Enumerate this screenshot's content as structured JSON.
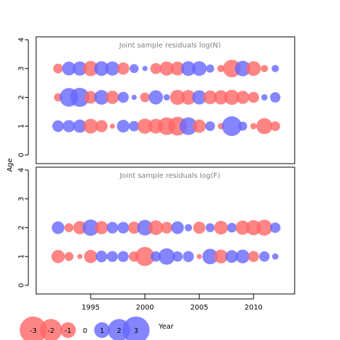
{
  "chart_data": {
    "type": "scatter",
    "ylabel": "Age",
    "xlabel": "Year",
    "xlim": [
      1990,
      2013.5
    ],
    "x_ticks": [
      1995,
      2000,
      2005,
      2010
    ],
    "y_ticks": [
      0,
      1,
      2,
      3,
      4
    ],
    "ylim": [
      -0.3,
      4.1
    ],
    "colors": {
      "positive": "#6666ff",
      "negative": "#ff6666"
    },
    "panels": [
      {
        "title": "Joint sample residuals log(N)",
        "points": [
          {
            "x": 1992,
            "y": 3,
            "v": -0.7
          },
          {
            "x": 1993,
            "y": 3,
            "v": 1.4
          },
          {
            "x": 1994,
            "y": 3,
            "v": 1.5
          },
          {
            "x": 1995,
            "y": 3,
            "v": -1.7
          },
          {
            "x": 1996,
            "y": 3,
            "v": 1.6
          },
          {
            "x": 1997,
            "y": 3,
            "v": 1.5
          },
          {
            "x": 1998,
            "y": 3,
            "v": -1.1
          },
          {
            "x": 1999,
            "y": 3,
            "v": 0.6
          },
          {
            "x": 2000,
            "y": 3,
            "v": 0.2
          },
          {
            "x": 2001,
            "y": 3,
            "v": -0.9
          },
          {
            "x": 2002,
            "y": 3,
            "v": -1.5
          },
          {
            "x": 2003,
            "y": 3,
            "v": -1.4
          },
          {
            "x": 2004,
            "y": 3,
            "v": 1.6
          },
          {
            "x": 2005,
            "y": 3,
            "v": 1.6
          },
          {
            "x": 2006,
            "y": 3,
            "v": 0.5
          },
          {
            "x": 2007,
            "y": 3,
            "v": -0.4
          },
          {
            "x": 2008,
            "y": 3,
            "v": -2.3
          },
          {
            "x": 2009,
            "y": 3,
            "v": 1.8
          },
          {
            "x": 2010,
            "y": 3,
            "v": -1.6
          },
          {
            "x": 2011,
            "y": 3,
            "v": -0.4
          },
          {
            "x": 2012,
            "y": 3,
            "v": 0.4
          },
          {
            "x": 1992,
            "y": 2,
            "v": -0.5
          },
          {
            "x": 1993,
            "y": 2,
            "v": 2.6
          },
          {
            "x": 1994,
            "y": 2,
            "v": 2.7
          },
          {
            "x": 1995,
            "y": 2,
            "v": -1.2
          },
          {
            "x": 1996,
            "y": 2,
            "v": 1.6
          },
          {
            "x": 1997,
            "y": 2,
            "v": -1.3
          },
          {
            "x": 1998,
            "y": 2,
            "v": 0.9
          },
          {
            "x": 1999,
            "y": 2,
            "v": 0.2
          },
          {
            "x": 2000,
            "y": 2,
            "v": -0.7
          },
          {
            "x": 2001,
            "y": 2,
            "v": 1.5
          },
          {
            "x": 2002,
            "y": 2,
            "v": 0.3
          },
          {
            "x": 2003,
            "y": 2,
            "v": -1.7
          },
          {
            "x": 2004,
            "y": 2,
            "v": -1.6
          },
          {
            "x": 2005,
            "y": 2,
            "v": 1.5
          },
          {
            "x": 2006,
            "y": 2,
            "v": -1.4
          },
          {
            "x": 2007,
            "y": 2,
            "v": -1.5
          },
          {
            "x": 2008,
            "y": 2,
            "v": -1.7
          },
          {
            "x": 2009,
            "y": 2,
            "v": -1.3
          },
          {
            "x": 2010,
            "y": 2,
            "v": -0.9
          },
          {
            "x": 2011,
            "y": 2,
            "v": 0.3
          },
          {
            "x": 2012,
            "y": 2,
            "v": 0.8
          },
          {
            "x": 1992,
            "y": 1,
            "v": 1.0
          },
          {
            "x": 1993,
            "y": 1,
            "v": 1.1
          },
          {
            "x": 1994,
            "y": 1,
            "v": 1.3
          },
          {
            "x": 1995,
            "y": 1,
            "v": -1.6
          },
          {
            "x": 1996,
            "y": 1,
            "v": -1.1
          },
          {
            "x": 1997,
            "y": 1,
            "v": -0.2
          },
          {
            "x": 1998,
            "y": 1,
            "v": 1.2
          },
          {
            "x": 1999,
            "y": 1,
            "v": 0.8
          },
          {
            "x": 2000,
            "y": 1,
            "v": -1.7
          },
          {
            "x": 2001,
            "y": 1,
            "v": -1.6
          },
          {
            "x": 2002,
            "y": 1,
            "v": -2.3
          },
          {
            "x": 2003,
            "y": 1,
            "v": -2.6
          },
          {
            "x": 2004,
            "y": 1,
            "v": 2.3
          },
          {
            "x": 2005,
            "y": 1,
            "v": -1.3
          },
          {
            "x": 2006,
            "y": 1,
            "v": 0.7
          },
          {
            "x": 2007,
            "y": 1,
            "v": -0.3
          },
          {
            "x": 2008,
            "y": 1,
            "v": 2.9
          },
          {
            "x": 2009,
            "y": 1,
            "v": 0.6
          },
          {
            "x": 2010,
            "y": 1,
            "v": -0.3
          },
          {
            "x": 2011,
            "y": 1,
            "v": -1.9
          },
          {
            "x": 2012,
            "y": 1,
            "v": -0.7
          }
        ]
      },
      {
        "title": "Joint sample residuals log(F)",
        "points": [
          {
            "x": 1992,
            "y": 2,
            "v": 1.2
          },
          {
            "x": 1993,
            "y": 2,
            "v": -0.6
          },
          {
            "x": 1994,
            "y": 2,
            "v": -1.3
          },
          {
            "x": 1995,
            "y": 2,
            "v": 2.0
          },
          {
            "x": 1996,
            "y": 2,
            "v": -1.3
          },
          {
            "x": 1997,
            "y": 2,
            "v": 1.0
          },
          {
            "x": 1998,
            "y": 2,
            "v": 1.0
          },
          {
            "x": 1999,
            "y": 2,
            "v": -1.1
          },
          {
            "x": 2000,
            "y": 2,
            "v": 1.8
          },
          {
            "x": 2001,
            "y": 2,
            "v": -1.6
          },
          {
            "x": 2002,
            "y": 2,
            "v": -1.0
          },
          {
            "x": 2003,
            "y": 2,
            "v": 1.2
          },
          {
            "x": 2004,
            "y": 2,
            "v": 0.4
          },
          {
            "x": 2005,
            "y": 2,
            "v": -1.1
          },
          {
            "x": 2006,
            "y": 2,
            "v": 0.6
          },
          {
            "x": 2007,
            "y": 2,
            "v": -1.4
          },
          {
            "x": 2008,
            "y": 2,
            "v": 0.7
          },
          {
            "x": 2009,
            "y": 2,
            "v": -1.5
          },
          {
            "x": 2010,
            "y": 2,
            "v": -1.7
          },
          {
            "x": 2011,
            "y": 2,
            "v": -1.9
          },
          {
            "x": 2012,
            "y": 2,
            "v": 0.8
          },
          {
            "x": 1992,
            "y": 1,
            "v": -1.3
          },
          {
            "x": 1993,
            "y": 1,
            "v": -0.6
          },
          {
            "x": 1994,
            "y": 1,
            "v": -0.2
          },
          {
            "x": 1995,
            "y": 1,
            "v": -1.3
          },
          {
            "x": 1996,
            "y": 1,
            "v": 1.0
          },
          {
            "x": 1997,
            "y": 1,
            "v": 0.9
          },
          {
            "x": 1998,
            "y": 1,
            "v": 0.9
          },
          {
            "x": 1999,
            "y": 1,
            "v": -0.8
          },
          {
            "x": 2000,
            "y": 1,
            "v": -2.7
          },
          {
            "x": 2001,
            "y": 1,
            "v": 0.8
          },
          {
            "x": 2002,
            "y": 1,
            "v": 2.0
          },
          {
            "x": 2003,
            "y": 1,
            "v": 0.8
          },
          {
            "x": 2004,
            "y": 1,
            "v": 0.9
          },
          {
            "x": 2005,
            "y": 1,
            "v": -0.2
          },
          {
            "x": 2006,
            "y": 1,
            "v": 1.8
          },
          {
            "x": 2007,
            "y": 1,
            "v": -1.4
          },
          {
            "x": 2008,
            "y": 1,
            "v": 1.2
          },
          {
            "x": 2009,
            "y": 1,
            "v": 1.4
          },
          {
            "x": 2010,
            "y": 1,
            "v": -0.9
          },
          {
            "x": 2011,
            "y": 1,
            "v": 0.8
          },
          {
            "x": 2012,
            "y": 1,
            "v": 0.3
          }
        ]
      }
    ],
    "legend": {
      "placement": "bottom-left",
      "values": [
        -3,
        -2,
        -1,
        0,
        1,
        2,
        3
      ],
      "labels": [
        "-3",
        "-2",
        "-1",
        "0",
        "1",
        "2",
        "3"
      ]
    }
  }
}
